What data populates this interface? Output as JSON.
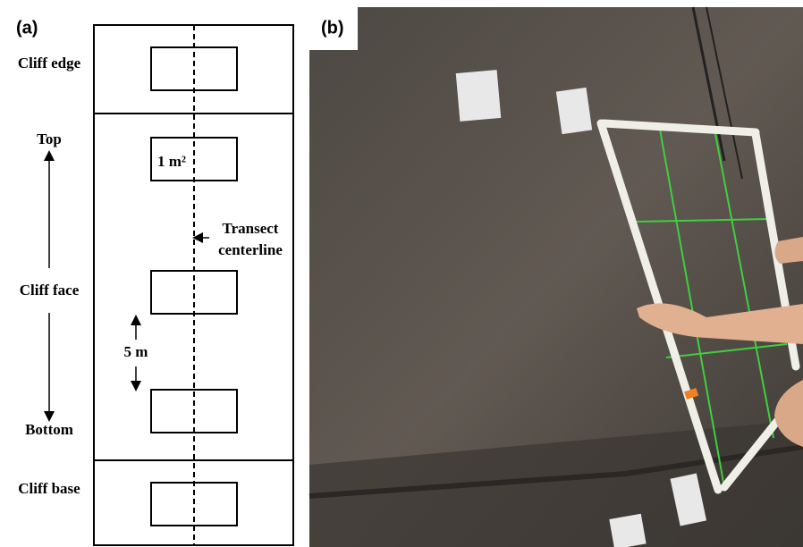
{
  "panel_a": {
    "label": "(a)",
    "zones": [
      "Cliff edge",
      "Cliff face",
      "Cliff base"
    ],
    "axis": {
      "top": "Top",
      "bottom": "Bottom"
    },
    "quadrat": "1 m²",
    "spacing": "5 m",
    "transect": [
      "Transect",
      "centerline"
    ]
  },
  "panel_b": {
    "label": "(b)"
  }
}
